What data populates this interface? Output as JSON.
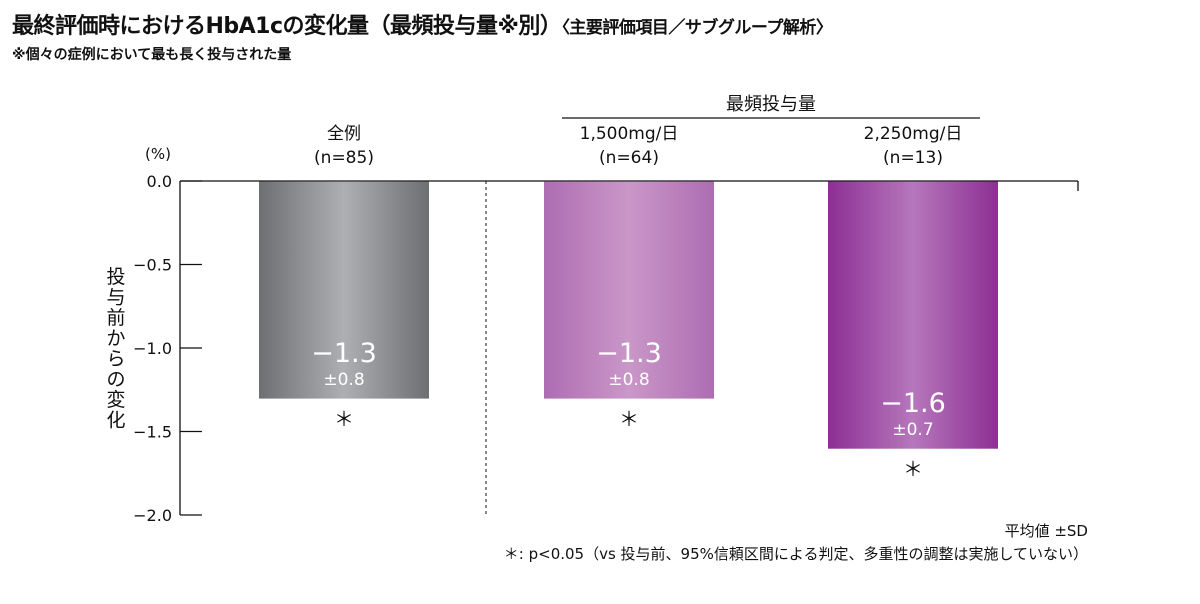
{
  "header": {
    "title": "最終評価時におけるHbA1cの変化量（最頻投与量※別）",
    "subtitle": "〈主要評価項目／サブグループ解析〉",
    "note": "※個々の症例において最も長く投与された量"
  },
  "chart_data": {
    "type": "bar",
    "unit_label": "(%)",
    "ylabel": "投与前からの変化",
    "ylim": [
      -2.0,
      0.0
    ],
    "yticks": [
      "0.0",
      "−0.5",
      "−1.0",
      "−1.5",
      "−2.0"
    ],
    "group_label": "最頻投与量",
    "categories": [
      {
        "name": "全例",
        "n": "(n=85)",
        "value": -1.3,
        "value_label": "−1.3",
        "sd_label": "±0.8",
        "marker": "＊",
        "color_dark": "#6e6f72",
        "color_light": "#aeafb2"
      },
      {
        "name": "1,500mg/日",
        "n": "(n=64)",
        "value": -1.3,
        "value_label": "−1.3",
        "sd_label": "±0.8",
        "marker": "＊",
        "color_dark": "#ad6db2",
        "color_light": "#ca97c8"
      },
      {
        "name": "2,250mg/日",
        "n": "(n=13)",
        "value": -1.6,
        "value_label": "−1.6",
        "sd_label": "±0.7",
        "marker": "＊",
        "color_dark": "#8c2f93",
        "color_light": "#b677bc"
      }
    ]
  },
  "footer": {
    "stat": "平均値 ±SD",
    "footnote": "＊: p<0.05（vs 投与前、95%信頼区間による判定、多重性の調整は実施していない）"
  }
}
